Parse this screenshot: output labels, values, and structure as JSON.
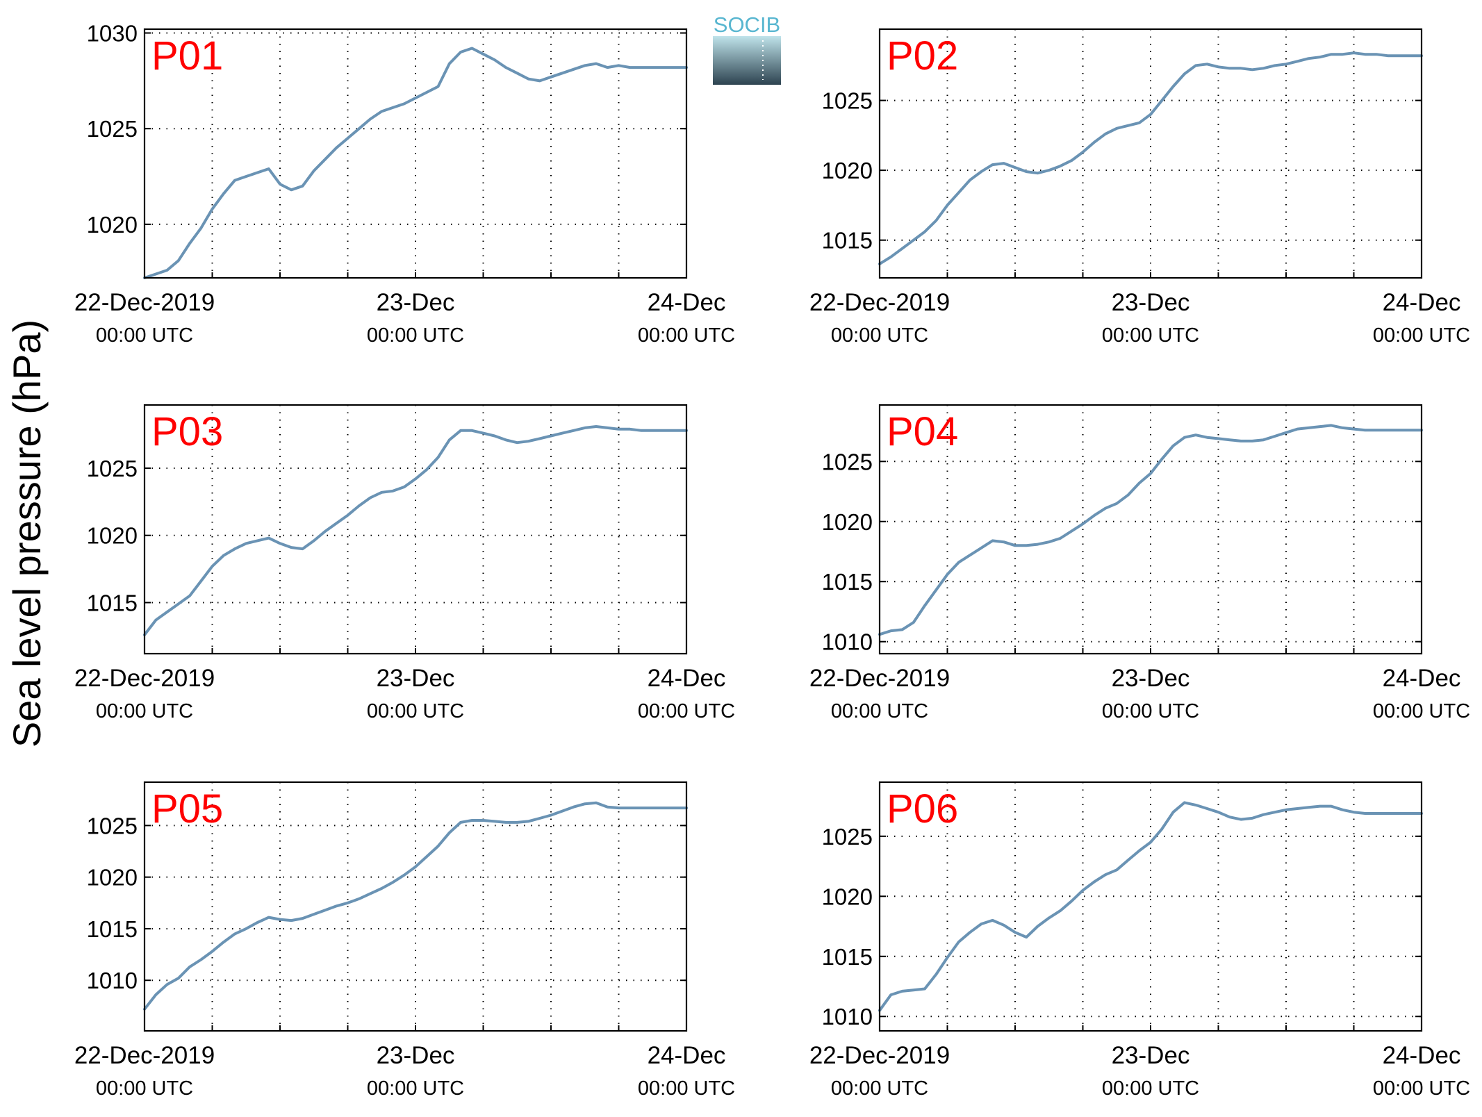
{
  "figure": {
    "ylabel": "Sea level pressure (hPa)",
    "line_color": "#6a93b4",
    "label_color": "#ff0000",
    "logo": {
      "text": "SOCIB",
      "top_color": "#bfe3ea",
      "bottom_color": "#2d4350",
      "text_color": "#58b6d0"
    }
  },
  "chart_data": [
    {
      "type": "line",
      "title": "P01",
      "x_ticks": [
        {
          "date": "22-Dec-2019",
          "time": "00:00 UTC"
        },
        {
          "date": "23-Dec",
          "time": "00:00 UTC"
        },
        {
          "date": "24-Dec",
          "time": "00:00 UTC"
        }
      ],
      "xlim_hours": [
        0,
        48
      ],
      "ylim": [
        1017.2,
        1030.2
      ],
      "y_ticks": [
        1020,
        1025,
        1030
      ],
      "grid": true,
      "series": [
        {
          "x": [
            0,
            1,
            2,
            3,
            4,
            5,
            6,
            7,
            8,
            9,
            10,
            11,
            12,
            13,
            14,
            15,
            16,
            17,
            18,
            19,
            20,
            21,
            22,
            23,
            24,
            25,
            26,
            27,
            28,
            29,
            30,
            31,
            32,
            33,
            34,
            35,
            36,
            37,
            38,
            39,
            40,
            41,
            42,
            43,
            44,
            45,
            46,
            47,
            48
          ],
          "y": [
            1017.2,
            1017.4,
            1017.6,
            1018.1,
            1019.0,
            1019.8,
            1020.8,
            1021.6,
            1022.3,
            1022.5,
            1022.7,
            1022.9,
            1022.1,
            1021.8,
            1022.0,
            1022.8,
            1023.4,
            1024.0,
            1024.5,
            1025.0,
            1025.5,
            1025.9,
            1026.1,
            1026.3,
            1026.6,
            1026.9,
            1027.2,
            1028.4,
            1029.0,
            1029.2,
            1028.9,
            1028.6,
            1028.2,
            1027.9,
            1027.6,
            1027.5,
            1027.7,
            1027.9,
            1028.1,
            1028.3,
            1028.4,
            1028.2,
            1028.3,
            1028.2,
            1028.2,
            1028.2,
            1028.2,
            1028.2,
            1028.2
          ]
        }
      ]
    },
    {
      "type": "line",
      "title": "P02",
      "x_ticks": [
        {
          "date": "22-Dec-2019",
          "time": "00:00 UTC"
        },
        {
          "date": "23-Dec",
          "time": "00:00 UTC"
        },
        {
          "date": "24-Dec",
          "time": "00:00 UTC"
        }
      ],
      "xlim_hours": [
        0,
        48
      ],
      "ylim": [
        1012.3,
        1030.1
      ],
      "y_ticks": [
        1015,
        1020,
        1025
      ],
      "grid": true,
      "series": [
        {
          "x": [
            0,
            1,
            2,
            3,
            4,
            5,
            6,
            7,
            8,
            9,
            10,
            11,
            12,
            13,
            14,
            15,
            16,
            17,
            18,
            19,
            20,
            21,
            22,
            23,
            24,
            25,
            26,
            27,
            28,
            29,
            30,
            31,
            32,
            33,
            34,
            35,
            36,
            37,
            38,
            39,
            40,
            41,
            42,
            43,
            44,
            45,
            46,
            47,
            48
          ],
          "y": [
            1013.3,
            1013.8,
            1014.4,
            1015.0,
            1015.6,
            1016.4,
            1017.5,
            1018.4,
            1019.3,
            1019.9,
            1020.4,
            1020.5,
            1020.2,
            1019.9,
            1019.8,
            1020.0,
            1020.3,
            1020.7,
            1021.3,
            1022.0,
            1022.6,
            1023.0,
            1023.2,
            1023.4,
            1024.0,
            1025.0,
            1026.0,
            1026.9,
            1027.5,
            1027.6,
            1027.4,
            1027.3,
            1027.3,
            1027.2,
            1027.3,
            1027.5,
            1027.6,
            1027.8,
            1028.0,
            1028.1,
            1028.3,
            1028.3,
            1028.4,
            1028.3,
            1028.3,
            1028.2,
            1028.2,
            1028.2,
            1028.2
          ]
        }
      ]
    },
    {
      "type": "line",
      "title": "P03",
      "x_ticks": [
        {
          "date": "22-Dec-2019",
          "time": "00:00 UTC"
        },
        {
          "date": "23-Dec",
          "time": "00:00 UTC"
        },
        {
          "date": "24-Dec",
          "time": "00:00 UTC"
        }
      ],
      "xlim_hours": [
        0,
        48
      ],
      "ylim": [
        1011.2,
        1029.7
      ],
      "y_ticks": [
        1015,
        1020,
        1025
      ],
      "grid": true,
      "series": [
        {
          "x": [
            0,
            1,
            2,
            3,
            4,
            5,
            6,
            7,
            8,
            9,
            10,
            11,
            12,
            13,
            14,
            15,
            16,
            17,
            18,
            19,
            20,
            21,
            22,
            23,
            24,
            25,
            26,
            27,
            28,
            29,
            30,
            31,
            32,
            33,
            34,
            35,
            36,
            37,
            38,
            39,
            40,
            41,
            42,
            43,
            44,
            45,
            46,
            47,
            48
          ],
          "y": [
            1012.6,
            1013.7,
            1014.3,
            1014.9,
            1015.5,
            1016.6,
            1017.7,
            1018.5,
            1019.0,
            1019.4,
            1019.6,
            1019.8,
            1019.4,
            1019.1,
            1019.0,
            1019.6,
            1020.3,
            1020.9,
            1021.5,
            1022.2,
            1022.8,
            1023.2,
            1023.3,
            1023.6,
            1024.2,
            1024.9,
            1025.8,
            1027.1,
            1027.8,
            1027.8,
            1027.6,
            1027.4,
            1027.1,
            1026.9,
            1027.0,
            1027.2,
            1027.4,
            1027.6,
            1027.8,
            1028.0,
            1028.1,
            1028.0,
            1027.9,
            1027.9,
            1027.8,
            1027.8,
            1027.8,
            1027.8,
            1027.8
          ]
        }
      ]
    },
    {
      "type": "line",
      "title": "P04",
      "x_ticks": [
        {
          "date": "22-Dec-2019",
          "time": "00:00 UTC"
        },
        {
          "date": "23-Dec",
          "time": "00:00 UTC"
        },
        {
          "date": "24-Dec",
          "time": "00:00 UTC"
        }
      ],
      "xlim_hours": [
        0,
        48
      ],
      "ylim": [
        1009.0,
        1029.7
      ],
      "y_ticks": [
        1010,
        1015,
        1020,
        1025
      ],
      "grid": true,
      "series": [
        {
          "x": [
            0,
            1,
            2,
            3,
            4,
            5,
            6,
            7,
            8,
            9,
            10,
            11,
            12,
            13,
            14,
            15,
            16,
            17,
            18,
            19,
            20,
            21,
            22,
            23,
            24,
            25,
            26,
            27,
            28,
            29,
            30,
            31,
            32,
            33,
            34,
            35,
            36,
            37,
            38,
            39,
            40,
            41,
            42,
            43,
            44,
            45,
            46,
            47,
            48
          ],
          "y": [
            1010.6,
            1010.9,
            1011.0,
            1011.6,
            1013.0,
            1014.3,
            1015.6,
            1016.6,
            1017.2,
            1017.8,
            1018.4,
            1018.3,
            1018.0,
            1018.0,
            1018.1,
            1018.3,
            1018.6,
            1019.2,
            1019.8,
            1020.5,
            1021.1,
            1021.5,
            1022.2,
            1023.2,
            1024.0,
            1025.2,
            1026.3,
            1027.0,
            1027.2,
            1027.0,
            1026.9,
            1026.8,
            1026.7,
            1026.7,
            1026.8,
            1027.1,
            1027.4,
            1027.7,
            1027.8,
            1027.9,
            1028.0,
            1027.8,
            1027.7,
            1027.6,
            1027.6,
            1027.6,
            1027.6,
            1027.6,
            1027.6
          ]
        }
      ]
    },
    {
      "type": "line",
      "title": "P05",
      "x_ticks": [
        {
          "date": "22-Dec-2019",
          "time": "00:00 UTC"
        },
        {
          "date": "23-Dec",
          "time": "00:00 UTC"
        },
        {
          "date": "24-Dec",
          "time": "00:00 UTC"
        }
      ],
      "xlim_hours": [
        0,
        48
      ],
      "ylim": [
        1005.1,
        1029.2
      ],
      "y_ticks": [
        1010,
        1015,
        1020,
        1025
      ],
      "grid": true,
      "series": [
        {
          "x": [
            0,
            1,
            2,
            3,
            4,
            5,
            6,
            7,
            8,
            9,
            10,
            11,
            12,
            13,
            14,
            15,
            16,
            17,
            18,
            19,
            20,
            21,
            22,
            23,
            24,
            25,
            26,
            27,
            28,
            29,
            30,
            31,
            32,
            33,
            34,
            35,
            36,
            37,
            38,
            39,
            40,
            41,
            42,
            43,
            44,
            45,
            46,
            47,
            48
          ],
          "y": [
            1007.2,
            1008.6,
            1009.6,
            1010.2,
            1011.3,
            1012.0,
            1012.8,
            1013.7,
            1014.5,
            1015.0,
            1015.6,
            1016.1,
            1015.9,
            1015.8,
            1016.0,
            1016.4,
            1016.8,
            1017.2,
            1017.5,
            1017.9,
            1018.4,
            1018.9,
            1019.5,
            1020.2,
            1021.0,
            1022.0,
            1023.0,
            1024.3,
            1025.3,
            1025.5,
            1025.5,
            1025.4,
            1025.3,
            1025.3,
            1025.4,
            1025.7,
            1026.0,
            1026.4,
            1026.8,
            1027.1,
            1027.2,
            1026.8,
            1026.7,
            1026.7,
            1026.7,
            1026.7,
            1026.7,
            1026.7,
            1026.7
          ]
        }
      ]
    },
    {
      "type": "line",
      "title": "P06",
      "x_ticks": [
        {
          "date": "22-Dec-2019",
          "time": "00:00 UTC"
        },
        {
          "date": "23-Dec",
          "time": "00:00 UTC"
        },
        {
          "date": "24-Dec",
          "time": "00:00 UTC"
        }
      ],
      "xlim_hours": [
        0,
        48
      ],
      "ylim": [
        1008.8,
        1029.5
      ],
      "y_ticks": [
        1010,
        1015,
        1020,
        1025
      ],
      "grid": true,
      "series": [
        {
          "x": [
            0,
            1,
            2,
            3,
            4,
            5,
            6,
            7,
            8,
            9,
            10,
            11,
            12,
            13,
            14,
            15,
            16,
            17,
            18,
            19,
            20,
            21,
            22,
            23,
            24,
            25,
            26,
            27,
            28,
            29,
            30,
            31,
            32,
            33,
            34,
            35,
            36,
            37,
            38,
            39,
            40,
            41,
            42,
            43,
            44,
            45,
            46,
            47,
            48
          ],
          "y": [
            1010.5,
            1011.8,
            1012.1,
            1012.2,
            1012.3,
            1013.5,
            1014.9,
            1016.2,
            1017.0,
            1017.7,
            1018.0,
            1017.6,
            1017.0,
            1016.6,
            1017.5,
            1018.2,
            1018.8,
            1019.6,
            1020.5,
            1021.2,
            1021.8,
            1022.2,
            1023.0,
            1023.8,
            1024.5,
            1025.6,
            1027.0,
            1027.8,
            1027.6,
            1027.3,
            1027.0,
            1026.6,
            1026.4,
            1026.5,
            1026.8,
            1027.0,
            1027.2,
            1027.3,
            1027.4,
            1027.5,
            1027.5,
            1027.2,
            1027.0,
            1026.9,
            1026.9,
            1026.9,
            1026.9,
            1026.9,
            1026.9
          ]
        }
      ]
    }
  ]
}
